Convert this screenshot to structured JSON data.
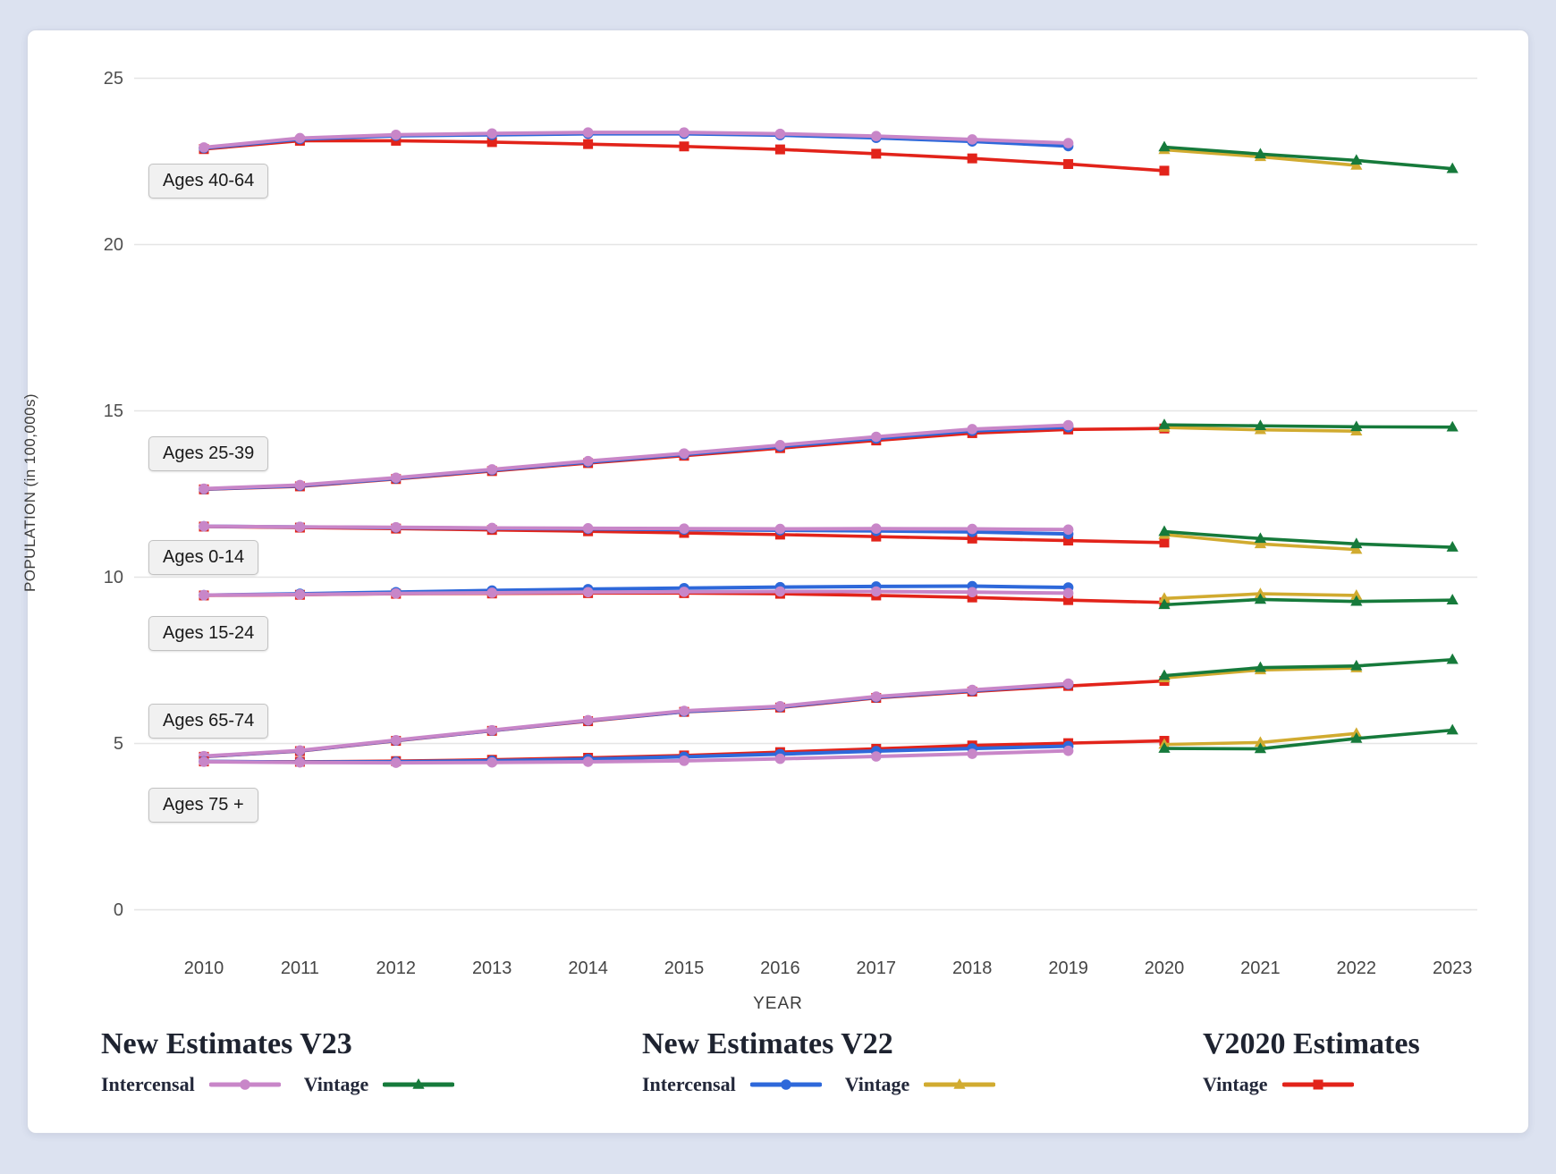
{
  "page": {
    "background_color": "#dce2f0",
    "card_background": "#ffffff"
  },
  "chart_data": {
    "type": "line",
    "xlabel": "YEAR",
    "ylabel": "POPULATION (in 100,000s)",
    "x_ticks": [
      "2010",
      "2011",
      "2012",
      "2013",
      "2014",
      "2015",
      "2016",
      "2017",
      "2018",
      "2019",
      "2020",
      "2021",
      "2022",
      "2023"
    ],
    "y_ticks": [
      "0",
      "5",
      "10",
      "15",
      "20",
      "25"
    ],
    "y_tick_values": [
      0,
      5,
      10,
      15,
      20,
      25
    ],
    "ylim": [
      0,
      25.5
    ],
    "grid": "horizontal",
    "legend_position": "bottom",
    "series_defs": {
      "v23_intercensal": {
        "name": "New Estimates V23 Intercensal",
        "color": "#c886c8",
        "marker": "circle",
        "start_year": 2010
      },
      "v22_intercensal": {
        "name": "New Estimates V22 Intercensal",
        "color": "#2e68da",
        "marker": "circle",
        "start_year": 2010
      },
      "v2020_vintage": {
        "name": "V2020 Estimates Vintage",
        "color": "#e2231a",
        "marker": "square",
        "start_year": 2010
      },
      "v22_vintage": {
        "name": "New Estimates V22 Vintage",
        "color": "#d1ab30",
        "marker": "triangle",
        "start_year": 2020
      },
      "v23_vintage": {
        "name": "New Estimates V23 Vintage",
        "color": "#167a3b",
        "marker": "triangle",
        "start_year": 2020
      }
    },
    "draw_order": [
      "v2020_vintage",
      "v22_intercensal",
      "v23_intercensal",
      "v22_vintage",
      "v23_vintage"
    ],
    "age_groups": [
      {
        "label": "Ages 40-64",
        "series": {
          "v23_intercensal": [
            22.92,
            23.2,
            23.3,
            23.34,
            23.37,
            23.37,
            23.33,
            23.26,
            23.16,
            23.05
          ],
          "v22_intercensal": [
            22.9,
            23.17,
            23.27,
            23.3,
            23.33,
            23.33,
            23.29,
            23.21,
            23.1,
            22.96
          ],
          "v2020_vintage": [
            22.87,
            23.12,
            23.12,
            23.08,
            23.02,
            22.95,
            22.86,
            22.73,
            22.59,
            22.42,
            22.22
          ],
          "v23_vintage": [
            22.93,
            22.72,
            22.53,
            22.28
          ],
          "v22_vintage": [
            22.85,
            22.64,
            22.38
          ]
        }
      },
      {
        "label": "Ages 25-39",
        "series": {
          "v23_intercensal": [
            12.66,
            12.77,
            12.99,
            13.24,
            13.49,
            13.72,
            13.97,
            14.22,
            14.45,
            14.57
          ],
          "v22_intercensal": [
            12.65,
            12.75,
            12.97,
            13.22,
            13.46,
            13.69,
            13.93,
            14.17,
            14.4,
            14.51
          ],
          "v2020_vintage": [
            12.64,
            12.73,
            12.95,
            13.19,
            13.43,
            13.65,
            13.88,
            14.11,
            14.33,
            14.44,
            14.47
          ],
          "v23_vintage": [
            14.58,
            14.55,
            14.52,
            14.51
          ],
          "v22_vintage": [
            14.5,
            14.43,
            14.39
          ]
        }
      },
      {
        "label": "Ages 0-14",
        "series": {
          "v23_intercensal": [
            11.53,
            11.51,
            11.5,
            11.48,
            11.47,
            11.46,
            11.45,
            11.46,
            11.45,
            11.43
          ],
          "v22_intercensal": [
            11.53,
            11.51,
            11.49,
            11.47,
            11.45,
            11.43,
            11.41,
            11.39,
            11.36,
            11.3
          ],
          "v2020_vintage": [
            11.52,
            11.49,
            11.46,
            11.42,
            11.38,
            11.33,
            11.28,
            11.22,
            11.16,
            11.1,
            11.04
          ],
          "v23_vintage": [
            11.37,
            11.16,
            11.0,
            10.9
          ],
          "v22_vintage": [
            11.28,
            11.0,
            10.83
          ]
        }
      },
      {
        "label": "Ages 15-24",
        "series": {
          "v23_intercensal": [
            9.46,
            9.48,
            9.51,
            9.53,
            9.55,
            9.56,
            9.57,
            9.57,
            9.55,
            9.52
          ],
          "v22_intercensal": [
            9.46,
            9.5,
            9.55,
            9.6,
            9.64,
            9.67,
            9.7,
            9.72,
            9.73,
            9.69
          ],
          "v2020_vintage": [
            9.45,
            9.47,
            9.5,
            9.51,
            9.52,
            9.52,
            9.5,
            9.45,
            9.39,
            9.31,
            9.24
          ],
          "v23_vintage": [
            9.17,
            9.33,
            9.27,
            9.31
          ],
          "v22_vintage": [
            9.36,
            9.5,
            9.45
          ]
        }
      },
      {
        "label": "Ages 65-74",
        "series": {
          "v23_intercensal": [
            4.62,
            4.79,
            5.1,
            5.4,
            5.7,
            5.98,
            6.12,
            6.41,
            6.61,
            6.8
          ],
          "v22_intercensal": [
            4.61,
            4.78,
            5.09,
            5.39,
            5.69,
            5.96,
            6.1,
            6.39,
            6.59,
            6.78
          ],
          "v2020_vintage": [
            4.6,
            4.77,
            5.08,
            5.38,
            5.67,
            5.95,
            6.08,
            6.37,
            6.56,
            6.73,
            6.88
          ],
          "v23_vintage": [
            7.04,
            7.28,
            7.33,
            7.52
          ],
          "v22_vintage": [
            6.97,
            7.21,
            7.27
          ]
        }
      },
      {
        "label": "Ages 75 +",
        "series": {
          "v23_intercensal": [
            4.45,
            4.43,
            4.42,
            4.43,
            4.45,
            4.48,
            4.54,
            4.61,
            4.69,
            4.78
          ],
          "v22_intercensal": [
            4.46,
            4.44,
            4.45,
            4.48,
            4.53,
            4.6,
            4.68,
            4.77,
            4.85,
            4.92
          ],
          "v2020_vintage": [
            4.46,
            4.45,
            4.47,
            4.51,
            4.57,
            4.64,
            4.74,
            4.84,
            4.94,
            5.01,
            5.08
          ],
          "v23_vintage": [
            4.85,
            4.84,
            5.15,
            5.4
          ],
          "v22_vintage": [
            4.97,
            5.03,
            5.3
          ]
        }
      }
    ],
    "legend_groups": [
      {
        "title": "New Estimates V23",
        "items": [
          {
            "label": "Intercensal",
            "series": "v23_intercensal"
          },
          {
            "label": "Vintage",
            "series": "v23_vintage"
          }
        ]
      },
      {
        "title": "New Estimates V22",
        "items": [
          {
            "label": "Intercensal",
            "series": "v22_intercensal"
          },
          {
            "label": "Vintage",
            "series": "v22_vintage"
          }
        ]
      },
      {
        "title": "V2020 Estimates",
        "items": [
          {
            "label": "Vintage",
            "series": "v2020_vintage"
          }
        ]
      }
    ]
  }
}
